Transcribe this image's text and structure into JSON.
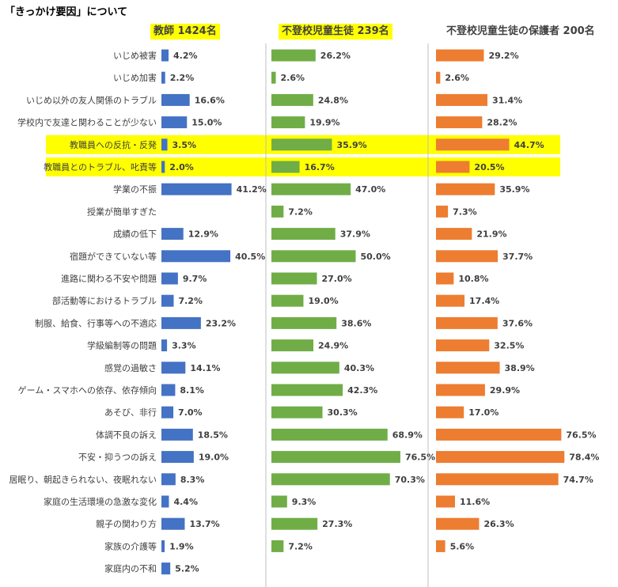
{
  "title": "「きっかけ要因」について",
  "colors": {
    "teacher": "#4472C4",
    "student": "#70AD47",
    "parent": "#ED7D31",
    "highlight": "#FFFF00",
    "label_text": "#404040",
    "divider": "#BFBFBF"
  },
  "headers": [
    "教師 1424名",
    "不登校児童生徒 239名",
    "不登校児童生徒の保護者 200名"
  ],
  "chart_data": {
    "type": "bar",
    "orientation": "horizontal",
    "title": "「きっかけ要因」について",
    "categories": [
      "いじめ被害",
      "いじめ加害",
      "いじめ以外の友人関係のトラブル",
      "学校内で友達と関わることが少ない",
      "教職員への反抗・反発",
      "教職員とのトラブル、叱責等",
      "学業の不振",
      "授業が簡単すぎた",
      "成績の低下",
      "宿題ができていない等",
      "進路に関わる不安や問題",
      "部活動等におけるトラブル",
      "制服、給食、行事等への不適応",
      "学級編制等の問題",
      "感覚の過敏さ",
      "ゲーム・スマホへの依存、依存傾向",
      "あそび、非行",
      "体調不良の訴え",
      "不安・抑うつの訴え",
      "居眠り、朝起きられない、夜眠れない",
      "家庭の生活環境の急激な変化",
      "親子の関わり方",
      "家族の介護等",
      "家庭内の不和"
    ],
    "highlighted_categories": [
      "教職員への反抗・反発",
      "教職員とのトラブル、叱責等"
    ],
    "series": [
      {
        "name": "教師 1424名",
        "values": [
          4.2,
          2.2,
          16.6,
          15.0,
          3.5,
          2.0,
          41.2,
          null,
          12.9,
          40.5,
          9.7,
          7.2,
          23.2,
          3.3,
          14.1,
          8.1,
          7.0,
          18.5,
          19.0,
          8.3,
          4.4,
          13.7,
          1.9,
          5.2
        ],
        "labels": [
          "4.2%",
          "2.2%",
          "16.6%",
          "15.0%",
          "3.5%",
          "2.0%",
          "41.2%",
          "",
          "12.9%",
          "40.5%",
          "9.7%",
          "7.2%",
          "23.2%",
          "3.3%",
          "14.1%",
          "8.1%",
          "7.0%",
          "18.5%",
          "19.0%",
          "8.3%",
          "4.4%",
          "13.7%",
          "1.9%",
          "5.2%"
        ]
      },
      {
        "name": "不登校児童生徒 239名",
        "values": [
          26.2,
          2.6,
          24.8,
          19.9,
          35.9,
          16.7,
          47.0,
          7.2,
          37.9,
          50.0,
          27.0,
          19.0,
          38.6,
          24.9,
          40.3,
          42.3,
          30.3,
          68.9,
          76.5,
          70.3,
          9.3,
          27.3,
          7.2,
          null
        ],
        "labels": [
          "26.2%",
          "2.6%",
          "24.8%",
          "19.9%",
          "35.9%",
          "16.7%",
          "47.0%",
          "7.2%",
          "37.9%",
          "50.0%",
          "27.0%",
          "19.0%",
          "38.6%",
          "24.9%",
          "40.3%",
          "42.3%",
          "30.3%",
          "68.9%",
          "76.5%",
          "70.3%",
          "9.3%",
          "27.3%",
          "7.2%",
          ""
        ]
      },
      {
        "name": "不登校児童生徒の保護者 200名",
        "values": [
          29.2,
          2.6,
          31.4,
          28.2,
          44.7,
          20.5,
          35.9,
          7.3,
          21.9,
          37.7,
          10.8,
          17.4,
          37.6,
          32.5,
          38.9,
          29.9,
          17.0,
          76.5,
          78.4,
          74.7,
          11.6,
          26.3,
          5.6,
          null
        ],
        "labels": [
          "29.2%",
          "2.6%",
          "31.4%",
          "28.2%",
          "44.7%",
          "20.5%",
          "35.9%",
          "7.3%",
          "21.9%",
          "37.7%",
          "10.8%",
          "17.4%",
          "37.6%",
          "32.5%",
          "38.9%",
          "29.9%",
          "17.0%",
          "76.5%",
          "78.4%",
          "74.7%",
          "11.6%",
          "26.3%",
          "5.6%",
          ""
        ]
      }
    ],
    "xlim": [
      0,
      100
    ],
    "grid": false,
    "legend": "none"
  }
}
